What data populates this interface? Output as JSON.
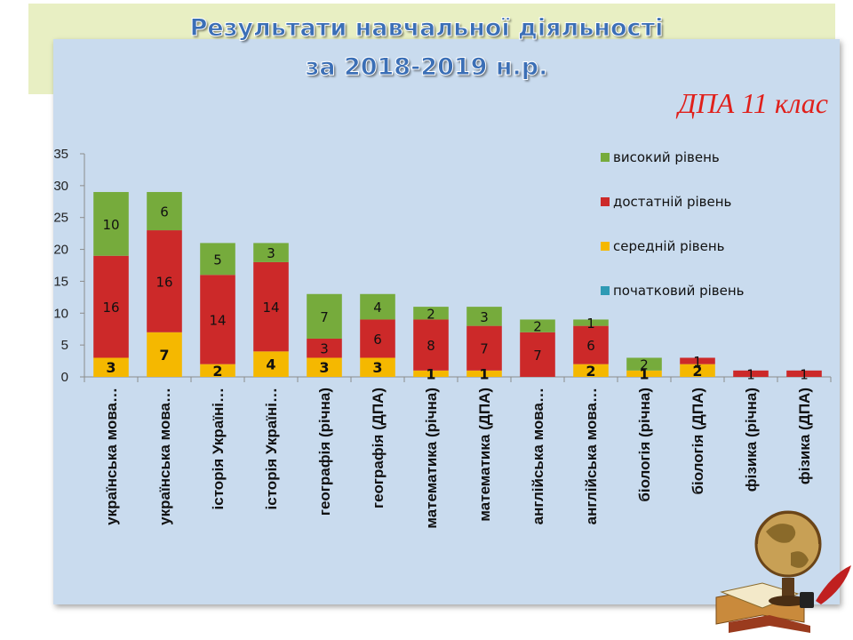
{
  "slide": {
    "title_line1": "Результати навчальної діяльності",
    "title_line2": "за 2018-2019 н.р.",
    "subtitle": "ДПА 11 клас"
  },
  "colors": {
    "title": "#3b6fb6",
    "subtitle": "#e0201b",
    "panel": "#c9dbee",
    "band": "#e8efc3"
  },
  "chart_data": {
    "type": "bar",
    "stacked": true,
    "title": "",
    "xlabel": "",
    "ylabel": "",
    "ylim": [
      0,
      35
    ],
    "yticks": [
      0,
      5,
      10,
      15,
      20,
      25,
      30,
      35
    ],
    "grid": false,
    "legend_position": "right",
    "categories": [
      "українська мова…",
      "українська мова…",
      "історія Україні…",
      "історія Україні…",
      "географія (річна)",
      "географія (ДПА)",
      "математика (річна)",
      "математика (ДПА)",
      "англійська мова…",
      "англійська мова…",
      "біологія (річна)",
      "біологія (ДПА)",
      "фізика (річна)",
      "фізика (ДПА)"
    ],
    "series": [
      {
        "name": "початковий рівень",
        "color": "#2e9ab4",
        "values": [
          0,
          0,
          0,
          0,
          0,
          0,
          0,
          0,
          0,
          0,
          0,
          0,
          0,
          0
        ]
      },
      {
        "name": "середній рівень",
        "color": "#f5b800",
        "values": [
          3,
          7,
          2,
          4,
          3,
          3,
          1,
          1,
          0,
          2,
          1,
          2,
          0,
          0
        ]
      },
      {
        "name": "достатній рівень",
        "color": "#cc2929",
        "values": [
          16,
          16,
          14,
          14,
          3,
          6,
          8,
          7,
          7,
          6,
          0,
          1,
          1,
          1
        ]
      },
      {
        "name": "високий рівень",
        "color": "#76ab3c",
        "values": [
          10,
          6,
          5,
          3,
          7,
          4,
          2,
          3,
          2,
          1,
          2,
          0,
          0,
          0
        ]
      }
    ],
    "legend_order": [
      "високий рівень",
      "достатній рівень",
      "середній рівень",
      "початковий рівень"
    ],
    "data_labels": [
      {
        "category": 0,
        "series": 1,
        "text": "3"
      },
      {
        "category": 0,
        "series": 2,
        "text": "16"
      },
      {
        "category": 0,
        "series": 3,
        "text": "10"
      },
      {
        "category": 1,
        "series": 1,
        "text": "7"
      },
      {
        "category": 1,
        "series": 2,
        "text": "16"
      },
      {
        "category": 1,
        "series": 3,
        "text": "6"
      },
      {
        "category": 2,
        "series": 1,
        "text": "2"
      },
      {
        "category": 2,
        "series": 2,
        "text": "14"
      },
      {
        "category": 2,
        "series": 3,
        "text": "5"
      },
      {
        "category": 3,
        "series": 1,
        "text": "4"
      },
      {
        "category": 3,
        "series": 2,
        "text": "14"
      },
      {
        "category": 3,
        "series": 3,
        "text": "3"
      },
      {
        "category": 4,
        "series": 1,
        "text": "3"
      },
      {
        "category": 4,
        "series": 2,
        "text": "3"
      },
      {
        "category": 4,
        "series": 3,
        "text": "7"
      },
      {
        "category": 5,
        "series": 1,
        "text": "3"
      },
      {
        "category": 5,
        "series": 2,
        "text": "6"
      },
      {
        "category": 5,
        "series": 3,
        "text": "4"
      },
      {
        "category": 6,
        "series": 1,
        "text": "1"
      },
      {
        "category": 6,
        "series": 2,
        "text": "8"
      },
      {
        "category": 6,
        "series": 3,
        "text": "2"
      },
      {
        "category": 7,
        "series": 1,
        "text": "1"
      },
      {
        "category": 7,
        "series": 2,
        "text": "7"
      },
      {
        "category": 7,
        "series": 3,
        "text": "3"
      },
      {
        "category": 8,
        "series": 2,
        "text": "7"
      },
      {
        "category": 8,
        "series": 3,
        "text": "2"
      },
      {
        "category": 9,
        "series": 1,
        "text": "2"
      },
      {
        "category": 9,
        "series": 2,
        "text": "6"
      },
      {
        "category": 9,
        "series": 3,
        "text": "1"
      },
      {
        "category": 10,
        "series": 1,
        "text": "1"
      },
      {
        "category": 10,
        "series": 3,
        "text": "2"
      },
      {
        "category": 11,
        "series": 1,
        "text": "2"
      },
      {
        "category": 11,
        "series": 2,
        "text": "1"
      },
      {
        "category": 12,
        "series": 2,
        "text": "1"
      },
      {
        "category": 13,
        "series": 2,
        "text": "1"
      }
    ]
  }
}
